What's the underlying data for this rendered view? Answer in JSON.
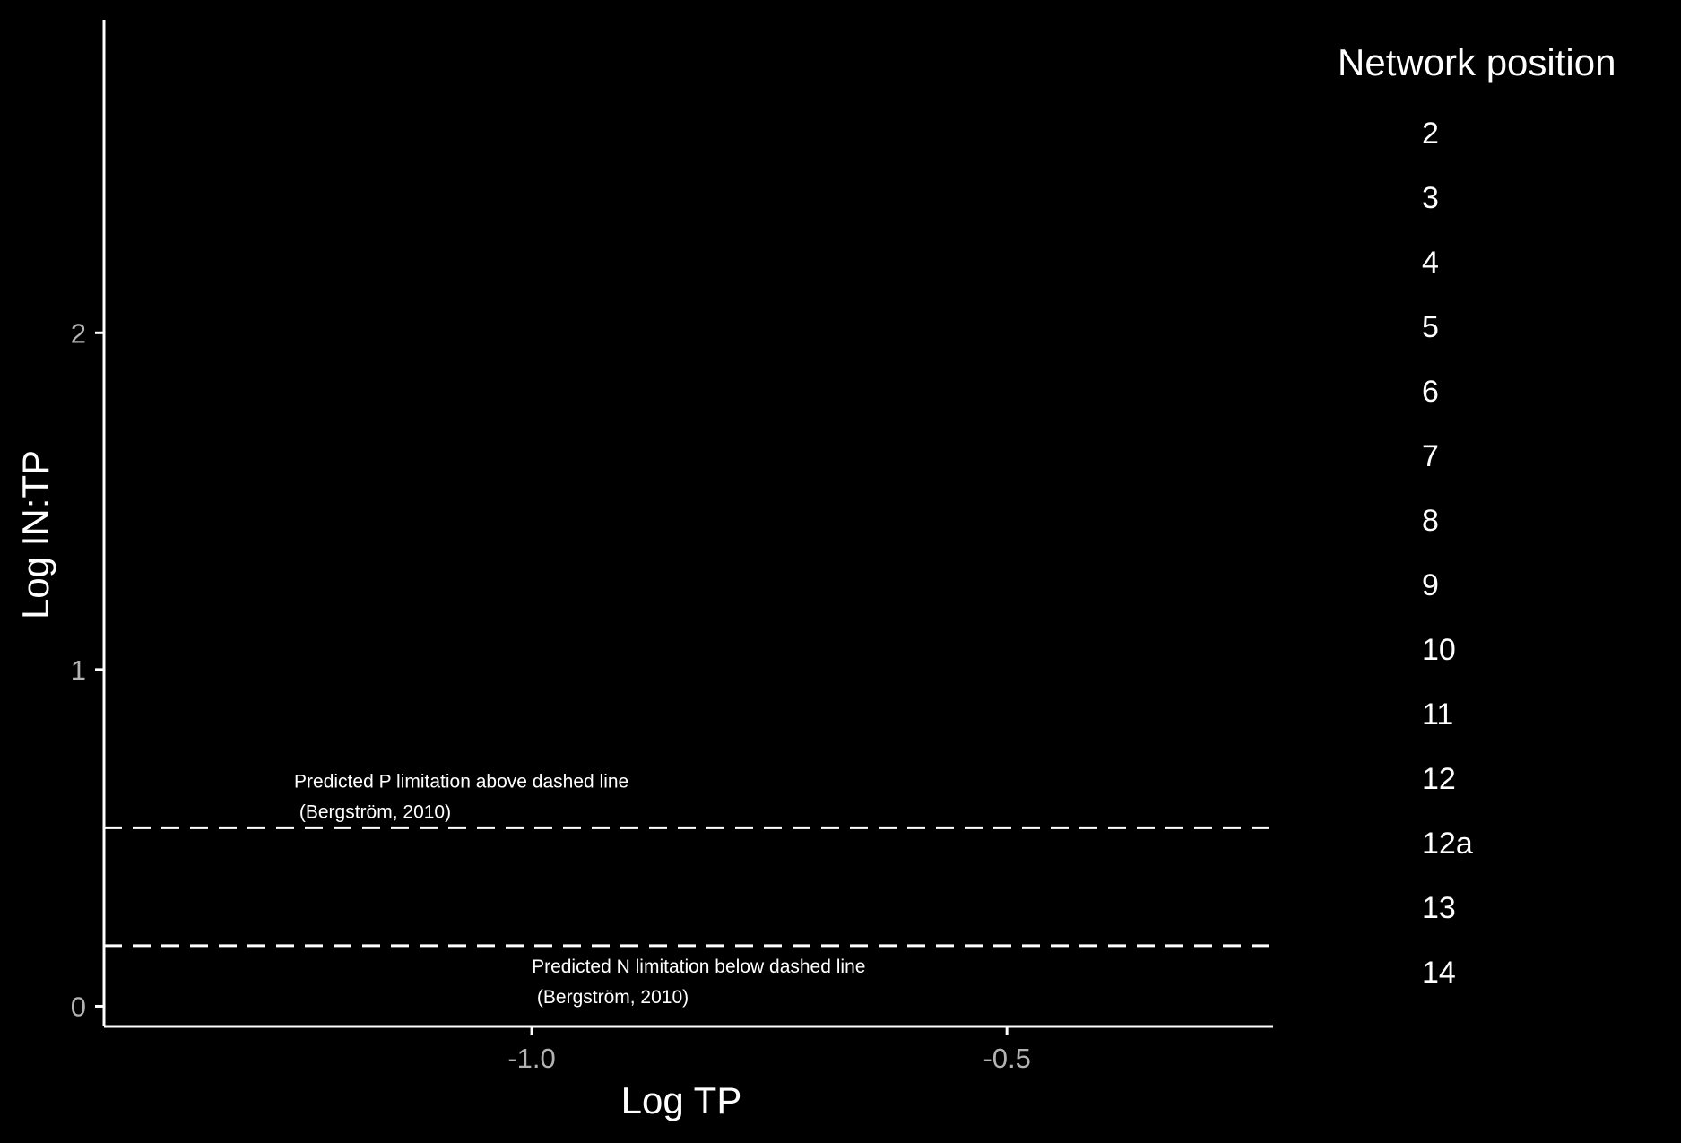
{
  "chart_data": {
    "type": "scatter",
    "background": "#000000",
    "foreground": "#ffffff",
    "tick_color": "#b3b3b3",
    "xlabel": "Log TP",
    "ylabel": "Log IN:TP",
    "xlim": [
      -1.45,
      -0.22
    ],
    "ylim": [
      -0.06,
      2.93
    ],
    "x_ticks": [
      {
        "value": -1.0,
        "label": "-1.0"
      },
      {
        "value": -0.5,
        "label": "-0.5"
      }
    ],
    "y_ticks": [
      {
        "value": 0,
        "label": "0"
      },
      {
        "value": 1,
        "label": "1"
      },
      {
        "value": 2,
        "label": "2"
      }
    ],
    "grid": false,
    "hlines": [
      {
        "y": 0.53,
        "style": "dashed",
        "color": "#ffffff"
      },
      {
        "y": 0.18,
        "style": "dashed",
        "color": "#ffffff"
      }
    ],
    "annotations": [
      {
        "lines": [
          "Predicted P limitation above dashed line",
          " (Bergström, 2010)"
        ],
        "x": -1.25,
        "y": 0.65
      },
      {
        "lines": [
          "Predicted N limitation below dashed line",
          " (Bergström, 2010)"
        ],
        "x": -1.0,
        "y": 0.1
      }
    ],
    "series": [],
    "legend": {
      "title": "Network position",
      "position": "right",
      "items": [
        "2",
        "3",
        "4",
        "5",
        "6",
        "7",
        "8",
        "9",
        "10",
        "11",
        "12",
        "12a",
        "13",
        "14"
      ]
    }
  }
}
